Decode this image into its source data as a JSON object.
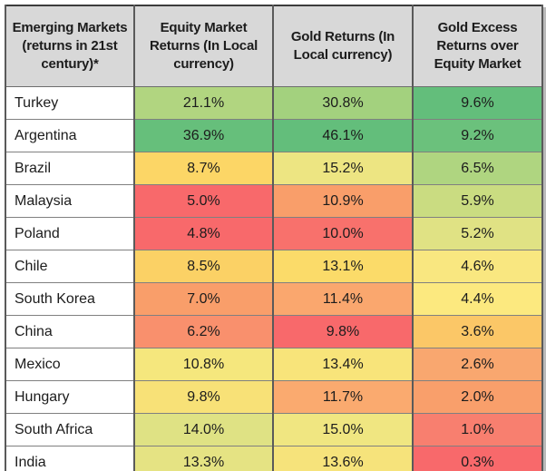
{
  "palette": {
    "header_bg": "#D8D8D8",
    "scale_min_red": "#F8696B",
    "scale_mid_yellow": "#FFE97D",
    "scale_max_green": "#63BE7B",
    "outer_border": "#3C3C3C",
    "grid_line": "#808080",
    "text": "#1C1C1C"
  },
  "table": {
    "columns": [
      {
        "label": "Emerging Markets (returns in 21st century)*"
      },
      {
        "label": "Equity Market Returns (In Local currency)"
      },
      {
        "label": "Gold Returns (In Local currency)"
      },
      {
        "label": "Gold Excess Returns over Equity Market"
      }
    ],
    "rows": [
      {
        "country": "Turkey",
        "equity": "21.1%",
        "gold": "30.8%",
        "excess": "9.6%",
        "colors": {
          "equity": "#B1D580",
          "gold": "#A3D17E",
          "excess": "#63BE7B"
        }
      },
      {
        "country": "Argentina",
        "equity": "36.9%",
        "gold": "46.1%",
        "excess": "9.2%",
        "colors": {
          "equity": "#66BF7B",
          "gold": "#63BE7B",
          "excess": "#6BC17C"
        }
      },
      {
        "country": "Brazil",
        "equity": "8.7%",
        "gold": "15.2%",
        "excess": "6.5%",
        "colors": {
          "equity": "#FCD666",
          "gold": "#EDE582",
          "excess": "#AFD580"
        }
      },
      {
        "country": "Malaysia",
        "equity": "5.0%",
        "gold": "10.9%",
        "excess": "5.9%",
        "colors": {
          "equity": "#F8696B",
          "gold": "#F99E6A",
          "excess": "#CADC81"
        }
      },
      {
        "country": "Poland",
        "equity": "4.8%",
        "gold": "10.0%",
        "excess": "5.2%",
        "colors": {
          "equity": "#F8696B",
          "gold": "#F8716C",
          "excess": "#E0E284"
        }
      },
      {
        "country": "Chile",
        "equity": "8.5%",
        "gold": "13.1%",
        "excess": "4.6%",
        "colors": {
          "equity": "#FBD165",
          "gold": "#FBDB69",
          "excess": "#F9E780"
        }
      },
      {
        "country": "South Korea",
        "equity": "7.0%",
        "gold": "11.4%",
        "excess": "4.4%",
        "colors": {
          "equity": "#F99E6A",
          "gold": "#FAA76E",
          "excess": "#FCE97F"
        }
      },
      {
        "country": "China",
        "equity": "6.2%",
        "gold": "9.8%",
        "excess": "3.6%",
        "colors": {
          "equity": "#F9906D",
          "gold": "#F8696B",
          "excess": "#FBC767"
        }
      },
      {
        "country": "Mexico",
        "equity": "10.8%",
        "gold": "13.4%",
        "excess": "2.6%",
        "colors": {
          "equity": "#F5E77D",
          "gold": "#F8E47A",
          "excess": "#F9A76F"
        }
      },
      {
        "country": "Hungary",
        "equity": "9.8%",
        "gold": "11.7%",
        "excess": "2.0%",
        "colors": {
          "equity": "#F8E177",
          "gold": "#FAAA6F",
          "excess": "#F99F6B"
        }
      },
      {
        "country": "South Africa",
        "equity": "14.0%",
        "gold": "15.0%",
        "excess": "1.0%",
        "colors": {
          "equity": "#DFE284",
          "gold": "#F0E681",
          "excess": "#F87F6F"
        }
      },
      {
        "country": "India",
        "equity": "13.3%",
        "gold": "13.6%",
        "excess": "0.3%",
        "colors": {
          "equity": "#E5E383",
          "gold": "#F6E37B",
          "excess": "#F8696B"
        }
      }
    ]
  },
  "chart_data": {
    "type": "table",
    "title": "Emerging Markets (returns in 21st century)*",
    "columns": [
      "Emerging Markets (returns in 21st century)*",
      "Equity Market Returns (In Local currency)",
      "Gold Returns (In Local currency)",
      "Gold Excess Returns over Equity Market"
    ],
    "unit": "percent",
    "rows": [
      [
        "Turkey",
        21.1,
        30.8,
        9.6
      ],
      [
        "Argentina",
        36.9,
        46.1,
        9.2
      ],
      [
        "Brazil",
        8.7,
        15.2,
        6.5
      ],
      [
        "Malaysia",
        5.0,
        10.9,
        5.9
      ],
      [
        "Poland",
        4.8,
        10.0,
        5.2
      ],
      [
        "Chile",
        8.5,
        13.1,
        4.6
      ],
      [
        "South Korea",
        7.0,
        11.4,
        4.4
      ],
      [
        "China",
        6.2,
        9.8,
        3.6
      ],
      [
        "Mexico",
        10.8,
        13.4,
        2.6
      ],
      [
        "Hungary",
        9.8,
        11.7,
        2.0
      ],
      [
        "South Africa",
        14.0,
        15.0,
        1.0
      ],
      [
        "India",
        13.3,
        13.6,
        0.3
      ]
    ],
    "layout_hints": {
      "heatmap_scale": "red-yellow-green conditional formatting applied per numeric column",
      "scale_colors": [
        "#F8696B",
        "#FFE97D",
        "#63BE7B"
      ],
      "header_background": "#D8D8D8",
      "grid": true
    }
  }
}
